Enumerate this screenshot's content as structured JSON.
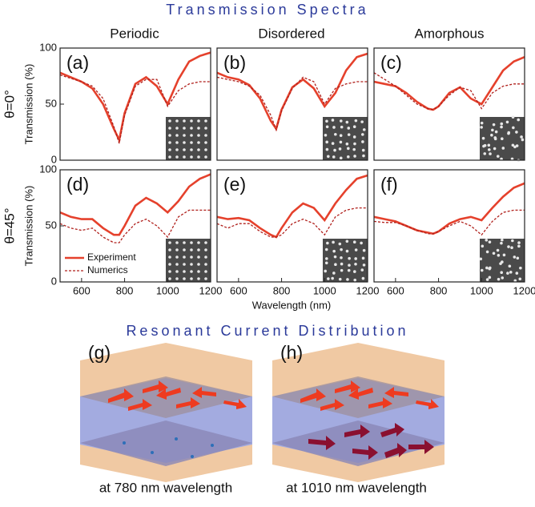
{
  "figure": {
    "title": "Transmission Spectra",
    "columns": [
      "Periodic",
      "Disordered",
      "Amorphous"
    ],
    "rows": [
      "θ=0°",
      "θ=45°"
    ],
    "x_label": "Wavelength (nm)",
    "bottom_title": "Resonant Current Distribution",
    "illustrations": [
      {
        "label": "(g)",
        "caption": "at 780 nm wavelength"
      },
      {
        "label": "(h)",
        "caption": "at 1010 nm wavelength"
      }
    ]
  },
  "chart_data": [
    {
      "type": "line",
      "title": "(a)",
      "y_label": "Transmission (%)",
      "xlim": [
        500,
        1200
      ],
      "ylim": [
        0,
        100
      ],
      "yticks": [
        0,
        50,
        100
      ],
      "x": [
        500,
        550,
        600,
        650,
        700,
        750,
        775,
        800,
        850,
        900,
        950,
        1000,
        1050,
        1100,
        1150,
        1200
      ],
      "series": [
        {
          "color": "#e5412c",
          "style": "solid",
          "values": [
            78,
            74,
            70,
            64,
            50,
            28,
            18,
            42,
            68,
            74,
            66,
            50,
            72,
            88,
            93,
            96
          ]
        },
        {
          "color": "#b0201c",
          "style": "dashed",
          "values": [
            76,
            73,
            70,
            66,
            55,
            30,
            15,
            40,
            66,
            72,
            72,
            48,
            62,
            68,
            70,
            70
          ]
        }
      ]
    },
    {
      "type": "line",
      "title": "(b)",
      "xlim": [
        500,
        1200
      ],
      "ylim": [
        0,
        100
      ],
      "x": [
        500,
        550,
        600,
        650,
        700,
        750,
        775,
        800,
        850,
        900,
        950,
        1000,
        1050,
        1100,
        1150,
        1200
      ],
      "series": [
        {
          "color": "#e5412c",
          "style": "solid",
          "values": [
            78,
            74,
            72,
            67,
            55,
            35,
            28,
            45,
            65,
            72,
            64,
            48,
            60,
            80,
            92,
            95
          ]
        },
        {
          "color": "#b0201c",
          "style": "dashed",
          "values": [
            74,
            72,
            70,
            66,
            58,
            40,
            27,
            44,
            64,
            74,
            70,
            50,
            64,
            68,
            70,
            70
          ]
        }
      ]
    },
    {
      "type": "line",
      "title": "(c)",
      "xlim": [
        500,
        1200
      ],
      "ylim": [
        0,
        100
      ],
      "x": [
        500,
        550,
        600,
        650,
        700,
        750,
        775,
        800,
        850,
        900,
        950,
        1000,
        1050,
        1100,
        1150,
        1200
      ],
      "series": [
        {
          "color": "#e5412c",
          "style": "solid",
          "values": [
            70,
            68,
            66,
            60,
            52,
            46,
            45,
            48,
            60,
            65,
            55,
            50,
            65,
            80,
            88,
            92
          ]
        },
        {
          "color": "#b0201c",
          "style": "dashed",
          "values": [
            78,
            72,
            66,
            58,
            50,
            46,
            45,
            48,
            58,
            65,
            62,
            46,
            60,
            66,
            68,
            68
          ]
        }
      ]
    },
    {
      "type": "line",
      "title": "(d)",
      "y_label": "Transmission (%)",
      "xlim": [
        500,
        1200
      ],
      "ylim": [
        0,
        100
      ],
      "yticks": [
        0,
        50,
        100
      ],
      "xticks": [
        600,
        800,
        1000,
        1200
      ],
      "legend": "lower left",
      "x": [
        500,
        550,
        600,
        650,
        700,
        750,
        775,
        800,
        850,
        900,
        950,
        1000,
        1050,
        1100,
        1150,
        1200
      ],
      "series": [
        {
          "name": "Experiment",
          "color": "#e5412c",
          "style": "solid",
          "values": [
            62,
            58,
            56,
            56,
            48,
            42,
            42,
            50,
            68,
            75,
            70,
            62,
            72,
            85,
            92,
            96
          ]
        },
        {
          "name": "Numerics",
          "color": "#b0201c",
          "style": "dashed",
          "values": [
            52,
            48,
            46,
            48,
            40,
            35,
            35,
            42,
            52,
            56,
            50,
            40,
            58,
            64,
            64,
            64
          ]
        }
      ]
    },
    {
      "type": "line",
      "title": "(e)",
      "xlim": [
        500,
        1200
      ],
      "ylim": [
        0,
        100
      ],
      "xticks": [
        600,
        800,
        1000,
        1200
      ],
      "x": [
        500,
        550,
        600,
        650,
        700,
        750,
        775,
        800,
        850,
        900,
        950,
        1000,
        1050,
        1100,
        1150,
        1200
      ],
      "series": [
        {
          "color": "#e5412c",
          "style": "solid",
          "values": [
            58,
            56,
            57,
            55,
            48,
            42,
            40,
            48,
            62,
            70,
            66,
            55,
            70,
            82,
            92,
            95
          ]
        },
        {
          "color": "#b0201c",
          "style": "dashed",
          "values": [
            52,
            48,
            52,
            52,
            45,
            40,
            40,
            42,
            52,
            56,
            52,
            42,
            58,
            64,
            66,
            66
          ]
        }
      ]
    },
    {
      "type": "line",
      "title": "(f)",
      "xlim": [
        500,
        1200
      ],
      "ylim": [
        0,
        100
      ],
      "xticks": [
        600,
        800,
        1000,
        1200
      ],
      "x": [
        500,
        550,
        600,
        650,
        700,
        750,
        775,
        800,
        850,
        900,
        950,
        1000,
        1050,
        1100,
        1150,
        1200
      ],
      "series": [
        {
          "color": "#e5412c",
          "style": "solid",
          "values": [
            58,
            56,
            54,
            50,
            46,
            44,
            43,
            45,
            52,
            56,
            58,
            55,
            66,
            76,
            84,
            88
          ]
        },
        {
          "color": "#b0201c",
          "style": "dashed",
          "values": [
            54,
            53,
            53,
            50,
            46,
            43,
            43,
            45,
            50,
            54,
            50,
            42,
            54,
            62,
            64,
            64
          ]
        }
      ]
    }
  ]
}
